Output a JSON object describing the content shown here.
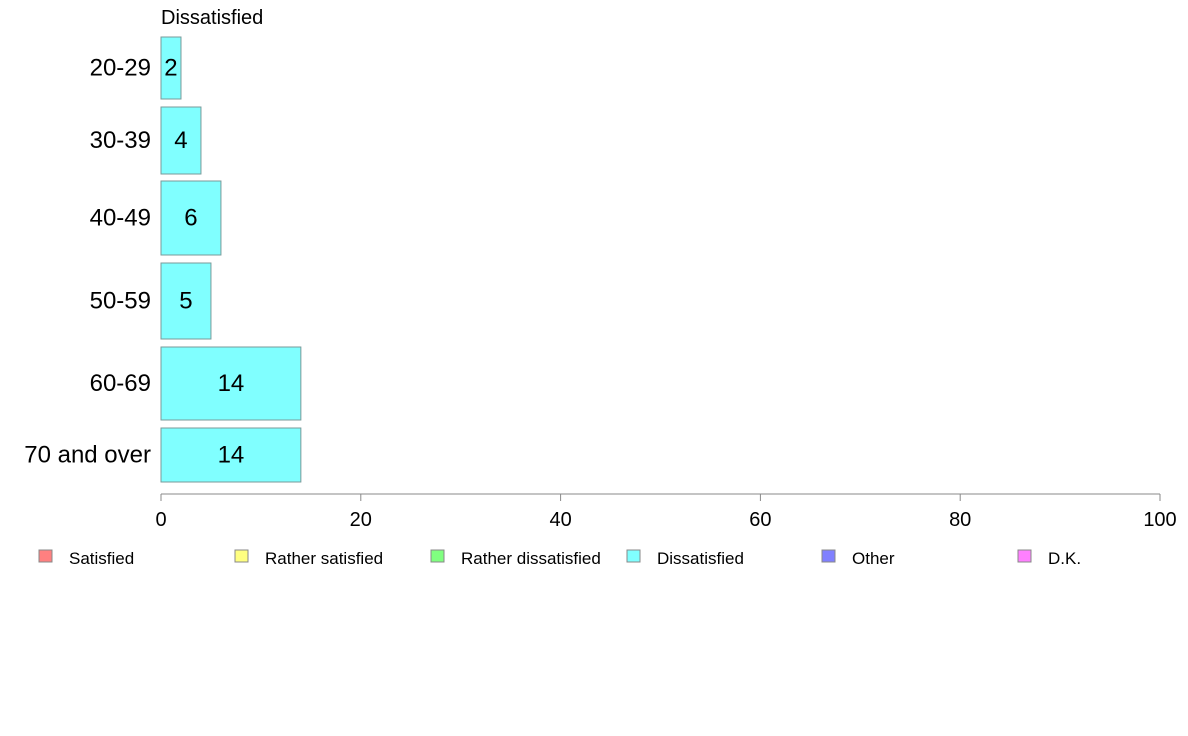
{
  "chart_data": {
    "type": "bar",
    "orientation": "horizontal",
    "title": "Dissatisfied",
    "categories": [
      "20-29",
      "30-39",
      "40-49",
      "50-59",
      "60-69",
      "70 and over"
    ],
    "series": [
      {
        "name": "Dissatisfied",
        "values": [
          2,
          4,
          6,
          5,
          14,
          14
        ],
        "color": "#80ffff"
      }
    ],
    "value_labels": [
      "2",
      "4",
      "6",
      "5",
      "14",
      "14"
    ],
    "xlim": [
      0,
      100
    ],
    "xticks": [
      0,
      20,
      40,
      60,
      80,
      100
    ],
    "xtick_labels": [
      "0",
      "20",
      "40",
      "60",
      "80",
      "100"
    ],
    "grid": false,
    "legend_position": "bottom",
    "legend": [
      {
        "label": "Satisfied",
        "color": "#ff8080"
      },
      {
        "label": "Rather satisfied",
        "color": "#ffff80"
      },
      {
        "label": "Rather dissatisfied",
        "color": "#80ff80"
      },
      {
        "label": "Dissatisfied",
        "color": "#80ffff"
      },
      {
        "label": "Other",
        "color": "#8080ff"
      },
      {
        "label": "D.K.",
        "color": "#ff80ff"
      }
    ]
  }
}
